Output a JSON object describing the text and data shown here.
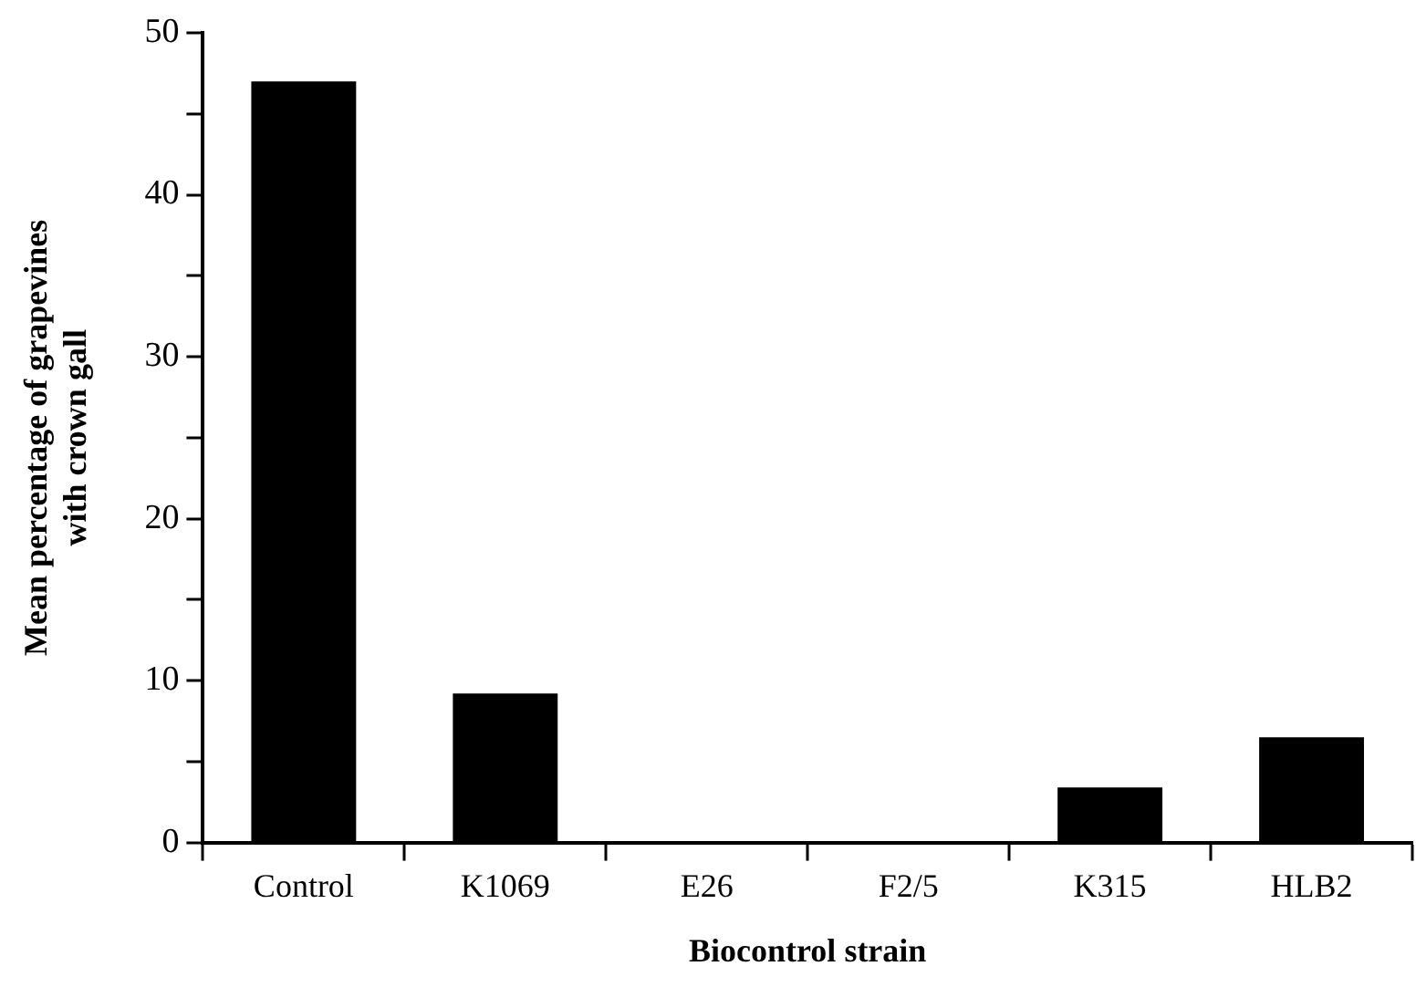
{
  "chart_data": {
    "type": "bar",
    "xlabel": "Biocontrol strain",
    "ylabel": "Mean percentage of grapevines\nwith crown gall",
    "categories": [
      "Control",
      "K1069",
      "E26",
      "F2/5",
      "K315",
      "HLB2"
    ],
    "values": [
      47,
      9.2,
      0,
      0,
      3.4,
      6.5
    ],
    "color": "#000000",
    "ylim": [
      0,
      50
    ],
    "yticks": [
      0,
      {
        "value": 5,
        "label": null
      },
      10,
      {
        "value": 15,
        "label": null
      },
      20,
      {
        "value": 25,
        "label": null
      },
      30,
      {
        "value": 35,
        "label": null
      },
      40,
      {
        "value": 45,
        "label": null
      },
      50
    ],
    "grid": false,
    "legend": false
  }
}
